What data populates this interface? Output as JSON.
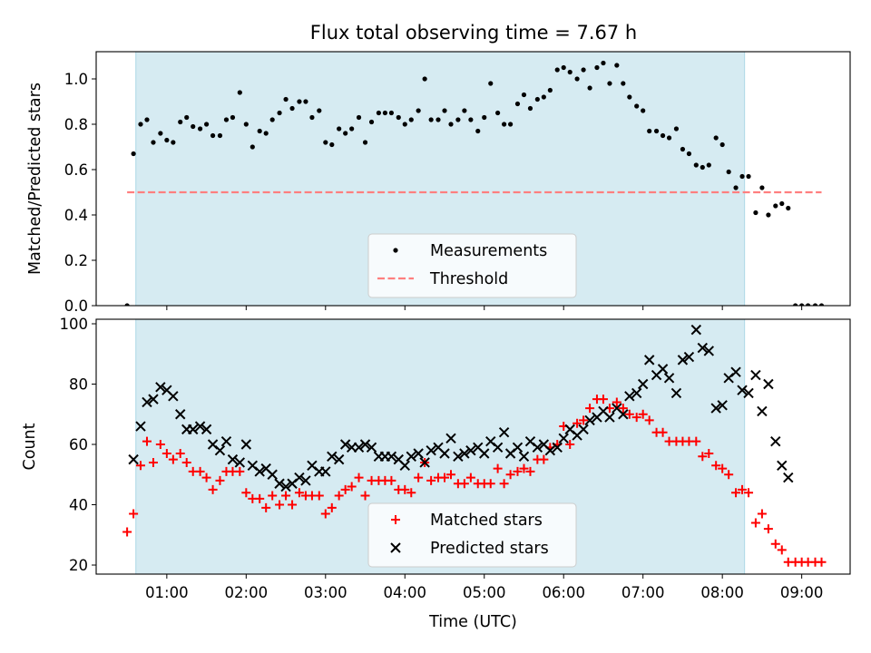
{
  "title": "Flux total observing time = 7.67 h",
  "colors": {
    "span": "#add8e6",
    "measurement": "#000000",
    "threshold": "#ff7f7f",
    "matched": "#ff0000",
    "predicted": "#000000"
  },
  "chart_data": [
    {
      "type": "scatter",
      "ylabel": "Matched/Predicted stars",
      "xlabel": "",
      "x_unit": "hours UTC",
      "xlim": [
        0.11,
        9.61
      ],
      "ylim": [
        0,
        1.12
      ],
      "yticks": [
        0.0,
        0.2,
        0.4,
        0.6,
        0.8,
        1.0
      ],
      "ytick_labels": [
        "0.0",
        "0.2",
        "0.4",
        "0.6",
        "0.8",
        "1.0"
      ],
      "shaded_span": [
        0.61,
        8.28
      ],
      "threshold": {
        "name": "Threshold",
        "y": 0.5,
        "x": [
          0.5,
          9.25
        ]
      },
      "legend_position": "lower center",
      "series": [
        {
          "name": "Measurements",
          "marker": "dot",
          "x": [
            0.5,
            0.58,
            0.67,
            0.75,
            0.83,
            0.92,
            1.0,
            1.08,
            1.17,
            1.25,
            1.33,
            1.42,
            1.5,
            1.58,
            1.67,
            1.75,
            1.83,
            1.92,
            2.0,
            2.08,
            2.17,
            2.25,
            2.33,
            2.42,
            2.5,
            2.58,
            2.67,
            2.75,
            2.83,
            2.92,
            3.0,
            3.08,
            3.17,
            3.25,
            3.33,
            3.42,
            3.5,
            3.58,
            3.67,
            3.75,
            3.83,
            3.92,
            4.0,
            4.08,
            4.17,
            4.25,
            4.33,
            4.42,
            4.5,
            4.58,
            4.67,
            4.75,
            4.83,
            4.92,
            5.0,
            5.08,
            5.17,
            5.25,
            5.33,
            5.42,
            5.5,
            5.58,
            5.67,
            5.75,
            5.83,
            5.92,
            6.0,
            6.08,
            6.17,
            6.25,
            6.33,
            6.42,
            6.5,
            6.58,
            6.67,
            6.75,
            6.83,
            6.92,
            7.0,
            7.08,
            7.17,
            7.25,
            7.33,
            7.42,
            7.5,
            7.58,
            7.67,
            7.75,
            7.83,
            7.92,
            8.0,
            8.08,
            8.17,
            8.25,
            8.33,
            8.42,
            8.5,
            8.58,
            8.67,
            8.75,
            8.83,
            8.92,
            9.0,
            9.08,
            9.17,
            9.25
          ],
          "y": [
            0.0,
            0.67,
            0.8,
            0.82,
            0.72,
            0.76,
            0.73,
            0.72,
            0.81,
            0.83,
            0.79,
            0.78,
            0.8,
            0.75,
            0.75,
            0.82,
            0.83,
            0.94,
            0.8,
            0.7,
            0.77,
            0.76,
            0.82,
            0.85,
            0.91,
            0.87,
            0.9,
            0.9,
            0.83,
            0.86,
            0.72,
            0.71,
            0.78,
            0.76,
            0.78,
            0.83,
            0.72,
            0.81,
            0.85,
            0.85,
            0.85,
            0.83,
            0.8,
            0.82,
            0.86,
            1.0,
            0.82,
            0.82,
            0.86,
            0.8,
            0.82,
            0.86,
            0.82,
            0.77,
            0.83,
            0.98,
            0.85,
            0.8,
            0.8,
            0.89,
            0.93,
            0.87,
            0.91,
            0.92,
            0.95,
            1.04,
            1.05,
            1.03,
            1.0,
            1.04,
            0.96,
            1.05,
            1.07,
            0.98,
            1.06,
            0.98,
            0.92,
            0.88,
            0.86,
            0.77,
            0.77,
            0.75,
            0.74,
            0.78,
            0.69,
            0.67,
            0.62,
            0.61,
            0.62,
            0.74,
            0.71,
            0.59,
            0.52,
            0.57,
            0.57,
            0.41,
            0.52,
            0.4,
            0.44,
            0.45,
            0.43,
            0.0,
            0.0,
            0.0,
            0.0,
            0.0
          ]
        }
      ]
    },
    {
      "type": "scatter",
      "ylabel": "Count",
      "xlabel": "Time (UTC)",
      "x_unit": "hours UTC",
      "xlim": [
        0.11,
        9.61
      ],
      "ylim": [
        17,
        101.5
      ],
      "yticks": [
        20,
        40,
        60,
        80,
        100
      ],
      "ytick_labels": [
        "20",
        "40",
        "60",
        "80",
        "100"
      ],
      "xticks": [
        1,
        2,
        3,
        4,
        5,
        6,
        7,
        8,
        9
      ],
      "xtick_labels": [
        "01:00",
        "02:00",
        "03:00",
        "04:00",
        "05:00",
        "06:00",
        "07:00",
        "08:00",
        "09:00"
      ],
      "shaded_span": [
        0.61,
        8.28
      ],
      "legend_position": "lower center",
      "series": [
        {
          "name": "Matched stars",
          "marker": "plus",
          "x": [
            0.5,
            0.58,
            0.67,
            0.75,
            0.83,
            0.92,
            1.0,
            1.08,
            1.17,
            1.25,
            1.33,
            1.42,
            1.5,
            1.58,
            1.67,
            1.75,
            1.83,
            1.92,
            2.0,
            2.08,
            2.17,
            2.25,
            2.33,
            2.42,
            2.5,
            2.58,
            2.67,
            2.75,
            2.83,
            2.92,
            3.0,
            3.08,
            3.17,
            3.25,
            3.33,
            3.42,
            3.5,
            3.58,
            3.67,
            3.75,
            3.83,
            3.92,
            4.0,
            4.08,
            4.17,
            4.25,
            4.33,
            4.42,
            4.5,
            4.58,
            4.67,
            4.75,
            4.83,
            4.92,
            5.0,
            5.08,
            5.17,
            5.25,
            5.33,
            5.42,
            5.5,
            5.58,
            5.67,
            5.75,
            5.83,
            5.92,
            6.0,
            6.08,
            6.17,
            6.25,
            6.33,
            6.42,
            6.5,
            6.58,
            6.67,
            6.75,
            6.83,
            6.92,
            7.0,
            7.08,
            7.17,
            7.25,
            7.33,
            7.42,
            7.5,
            7.58,
            7.67,
            7.75,
            7.83,
            7.92,
            8.0,
            8.08,
            8.17,
            8.25,
            8.33,
            8.42,
            8.5,
            8.58,
            8.67,
            8.75,
            8.83,
            8.92,
            9.0,
            9.08,
            9.17,
            9.25
          ],
          "y": [
            31,
            37,
            53,
            61,
            54,
            60,
            57,
            55,
            57,
            54,
            51,
            51,
            49,
            45,
            48,
            51,
            51,
            51,
            44,
            42,
            42,
            39,
            43,
            40,
            43,
            40,
            44,
            43,
            43,
            43,
            37,
            39,
            43,
            45,
            46,
            49,
            43,
            48,
            48,
            48,
            48,
            45,
            45,
            44,
            49,
            54,
            48,
            49,
            49,
            50,
            47,
            47,
            49,
            47,
            47,
            47,
            52,
            47,
            50,
            51,
            52,
            51,
            55,
            55,
            59,
            60,
            66,
            60,
            67,
            68,
            72,
            75,
            75,
            72,
            74,
            72,
            70,
            69,
            70,
            68,
            64,
            64,
            61,
            61,
            61,
            61,
            61,
            56,
            57,
            53,
            52,
            50,
            44,
            45,
            44,
            34,
            37,
            32,
            27,
            25,
            21,
            21,
            21,
            21,
            21,
            21
          ]
        },
        {
          "name": "Predicted stars",
          "marker": "x",
          "x": [
            0.58,
            0.67,
            0.75,
            0.83,
            0.92,
            1.0,
            1.08,
            1.17,
            1.25,
            1.33,
            1.42,
            1.5,
            1.58,
            1.67,
            1.75,
            1.83,
            1.92,
            2.0,
            2.08,
            2.17,
            2.25,
            2.33,
            2.42,
            2.5,
            2.58,
            2.67,
            2.75,
            2.83,
            2.92,
            3.0,
            3.08,
            3.17,
            3.25,
            3.33,
            3.42,
            3.5,
            3.58,
            3.67,
            3.75,
            3.83,
            3.92,
            4.0,
            4.08,
            4.17,
            4.25,
            4.33,
            4.42,
            4.5,
            4.58,
            4.67,
            4.75,
            4.83,
            4.92,
            5.0,
            5.08,
            5.17,
            5.25,
            5.33,
            5.42,
            5.5,
            5.58,
            5.67,
            5.75,
            5.83,
            5.92,
            6.0,
            6.08,
            6.17,
            6.25,
            6.33,
            6.42,
            6.5,
            6.58,
            6.67,
            6.75,
            6.83,
            6.92,
            7.0,
            7.08,
            7.17,
            7.25,
            7.33,
            7.42,
            7.5,
            7.58,
            7.67,
            7.75,
            7.83,
            7.92,
            8.0,
            8.08,
            8.17,
            8.25,
            8.33,
            8.42,
            8.5,
            8.58,
            8.67,
            8.75,
            8.83
          ],
          "y": [
            55,
            66,
            74,
            75,
            79,
            78,
            76,
            70,
            65,
            65,
            66,
            65,
            60,
            58,
            61,
            55,
            54,
            60,
            53,
            51,
            52,
            50,
            47,
            46,
            47,
            49,
            48,
            53,
            51,
            51,
            56,
            55,
            60,
            59,
            59,
            60,
            59,
            56,
            56,
            56,
            55,
            53,
            56,
            57,
            54,
            58,
            59,
            57,
            62,
            56,
            57,
            58,
            59,
            57,
            61,
            59,
            64,
            57,
            59,
            56,
            61,
            59,
            60,
            58,
            59,
            62,
            65,
            63,
            65,
            68,
            69,
            71,
            69,
            72,
            70,
            76,
            77,
            80,
            88,
            83,
            85,
            82,
            77,
            88,
            89,
            98,
            92,
            91,
            72,
            73,
            82,
            84,
            78,
            77,
            83,
            71,
            80,
            61,
            53,
            49
          ]
        }
      ]
    }
  ]
}
